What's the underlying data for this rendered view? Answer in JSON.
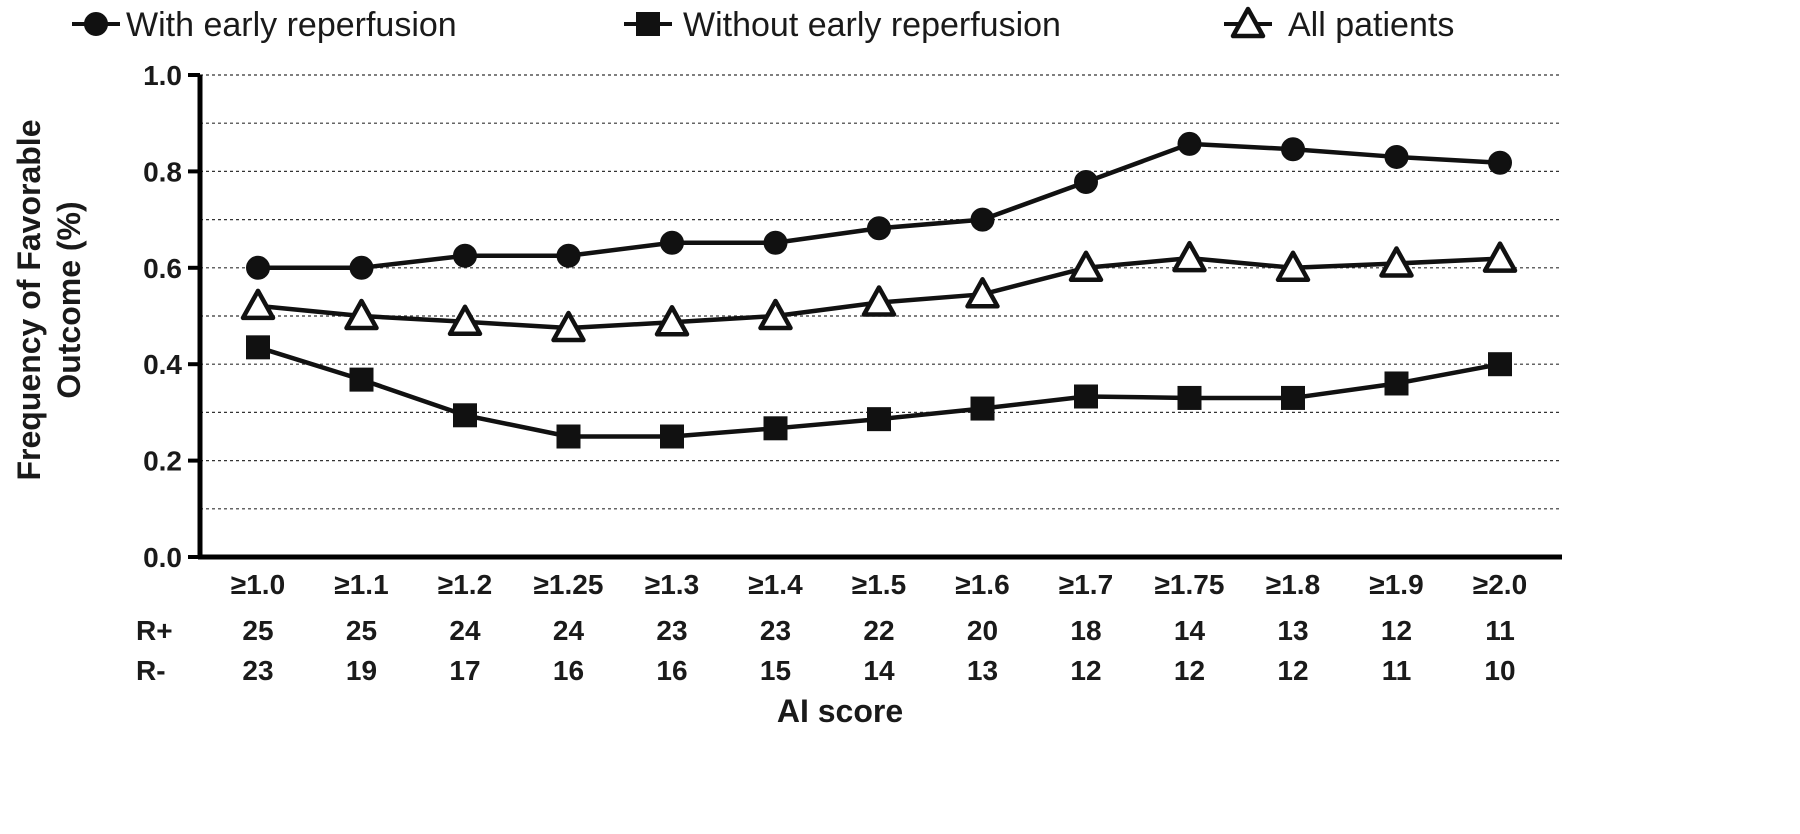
{
  "chart_data": {
    "type": "line",
    "title": "",
    "xlabel": "AI score",
    "ylabel_line1": "Frequency of Favorable",
    "ylabel_line2": "Outcome (%)",
    "ylim": [
      0.0,
      1.0
    ],
    "y_ticks": [
      "0.0",
      "0.2",
      "0.4",
      "0.6",
      "0.8",
      "1.0"
    ],
    "categories": [
      "≥1.0",
      "≥1.1",
      "≥1.2",
      "≥1.25",
      "≥1.3",
      "≥1.4",
      "≥1.5",
      "≥1.6",
      "≥1.7",
      "≥1.75",
      "≥1.8",
      "≥1.9",
      "≥2.0"
    ],
    "grid": true,
    "legend_placement": "top",
    "series": [
      {
        "name": "With early reperfusion",
        "marker": "circle",
        "values": [
          0.6,
          0.6,
          0.625,
          0.625,
          0.652,
          0.652,
          0.682,
          0.7,
          0.778,
          0.857,
          0.846,
          0.83,
          0.818
        ]
      },
      {
        "name": "Without early reperfusion",
        "marker": "square",
        "values": [
          0.435,
          0.368,
          0.294,
          0.25,
          0.25,
          0.267,
          0.286,
          0.308,
          0.333,
          0.33,
          0.33,
          0.36,
          0.4
        ]
      },
      {
        "name": "All patients",
        "marker": "triangle",
        "values": [
          0.521,
          0.5,
          0.488,
          0.475,
          0.487,
          0.5,
          0.528,
          0.545,
          0.6,
          0.62,
          0.6,
          0.609,
          0.619
        ]
      }
    ],
    "rows": [
      {
        "label": "R+",
        "values": [
          "25",
          "25",
          "24",
          "24",
          "23",
          "23",
          "22",
          "20",
          "18",
          "14",
          "13",
          "12",
          "11"
        ]
      },
      {
        "label": "R-",
        "values": [
          "23",
          "19",
          "17",
          "16",
          "16",
          "15",
          "14",
          "13",
          "12",
          "12",
          "12",
          "11",
          "10"
        ]
      }
    ]
  }
}
